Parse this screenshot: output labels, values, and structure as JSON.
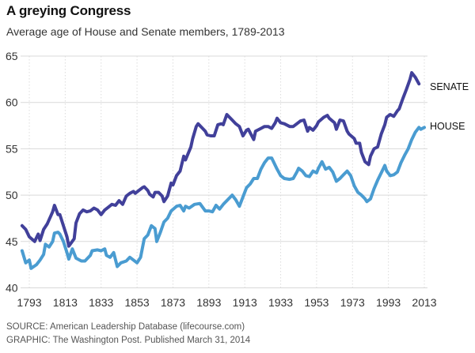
{
  "header": {
    "title": "A greying Congress",
    "subtitle": "Average age of House and Senate members, 1789-2013"
  },
  "footer": {
    "source": "SOURCE: American Leadership Database (lifecourse.com)",
    "graphic": "GRAPHIC: The Washington Post. Published March 31, 2014"
  },
  "colors": {
    "senate": "#41409a",
    "house": "#4a9cd1",
    "grid": "#d9d9d9"
  },
  "chart_data": {
    "type": "line",
    "title": "A greying Congress",
    "subtitle": "Average age of House and Senate members, 1789-2013",
    "xlabel": "",
    "ylabel": "",
    "xlim": [
      1789,
      2013
    ],
    "ylim": [
      40,
      65
    ],
    "xticks": [
      1793,
      1813,
      1833,
      1853,
      1873,
      1893,
      1913,
      1933,
      1953,
      1973,
      1993,
      2013
    ],
    "xtick_labels": [
      "1793",
      "1813",
      "1833",
      "1853",
      "1873",
      "1893",
      "1913",
      "1933",
      "1953",
      "1973",
      "1993",
      "2013"
    ],
    "yticks": [
      40,
      45,
      50,
      55,
      60,
      65
    ],
    "ytick_labels": [
      "40",
      "45",
      "50",
      "55",
      "60",
      "65"
    ],
    "grid": true,
    "legend": "direct-labels-right",
    "series": [
      {
        "name": "SENATE",
        "label": "SENATE",
        "points": [
          [
            1789,
            46.7
          ],
          [
            1791,
            46.3
          ],
          [
            1793,
            45.5
          ],
          [
            1796,
            45.0
          ],
          [
            1798,
            45.8
          ],
          [
            1799,
            45.1
          ],
          [
            1801,
            46.3
          ],
          [
            1803,
            46.9
          ],
          [
            1806,
            48.2
          ],
          [
            1807,
            48.9
          ],
          [
            1809,
            47.9
          ],
          [
            1810,
            47.9
          ],
          [
            1814,
            45.5
          ],
          [
            1815,
            44.5
          ],
          [
            1818,
            45.3
          ],
          [
            1819,
            47.0
          ],
          [
            1821,
            48.0
          ],
          [
            1823,
            48.4
          ],
          [
            1825,
            48.2
          ],
          [
            1827,
            48.3
          ],
          [
            1829,
            48.6
          ],
          [
            1831,
            48.4
          ],
          [
            1833,
            47.9
          ],
          [
            1835,
            48.4
          ],
          [
            1837,
            48.7
          ],
          [
            1839,
            49.0
          ],
          [
            1841,
            48.9
          ],
          [
            1843,
            49.4
          ],
          [
            1845,
            49.0
          ],
          [
            1847,
            49.9
          ],
          [
            1849,
            50.2
          ],
          [
            1851,
            50.4
          ],
          [
            1852,
            50.2
          ],
          [
            1854,
            50.5
          ],
          [
            1856,
            50.8
          ],
          [
            1857,
            50.9
          ],
          [
            1859,
            50.5
          ],
          [
            1860,
            50.1
          ],
          [
            1862,
            49.8
          ],
          [
            1863,
            50.3
          ],
          [
            1865,
            50.3
          ],
          [
            1867,
            49.9
          ],
          [
            1868,
            49.3
          ],
          [
            1870,
            49.9
          ],
          [
            1872,
            51.3
          ],
          [
            1873,
            51.1
          ],
          [
            1875,
            52.1
          ],
          [
            1877,
            52.6
          ],
          [
            1879,
            54.2
          ],
          [
            1880,
            53.8
          ],
          [
            1883,
            55.2
          ],
          [
            1884,
            56.1
          ],
          [
            1886,
            57.4
          ],
          [
            1887,
            57.7
          ],
          [
            1891,
            56.9
          ],
          [
            1892,
            56.5
          ],
          [
            1894,
            56.4
          ],
          [
            1896,
            56.4
          ],
          [
            1898,
            57.6
          ],
          [
            1900,
            57.7
          ],
          [
            1901,
            57.6
          ],
          [
            1903,
            58.7
          ],
          [
            1906,
            58.1
          ],
          [
            1908,
            57.7
          ],
          [
            1910,
            57.4
          ],
          [
            1912,
            56.4
          ],
          [
            1914,
            57.0
          ],
          [
            1915,
            57.1
          ],
          [
            1918,
            56.0
          ],
          [
            1919,
            56.9
          ],
          [
            1922,
            57.2
          ],
          [
            1924,
            57.4
          ],
          [
            1926,
            57.4
          ],
          [
            1928,
            57.2
          ],
          [
            1930,
            57.8
          ],
          [
            1931,
            58.3
          ],
          [
            1933,
            57.8
          ],
          [
            1935,
            57.7
          ],
          [
            1938,
            57.4
          ],
          [
            1940,
            57.4
          ],
          [
            1942,
            57.7
          ],
          [
            1944,
            58.0
          ],
          [
            1946,
            58.1
          ],
          [
            1948,
            56.9
          ],
          [
            1949,
            57.3
          ],
          [
            1951,
            57.0
          ],
          [
            1953,
            57.5
          ],
          [
            1954,
            57.9
          ],
          [
            1957,
            58.4
          ],
          [
            1959,
            58.6
          ],
          [
            1960,
            58.3
          ],
          [
            1963,
            57.8
          ],
          [
            1964,
            57.1
          ],
          [
            1966,
            58.1
          ],
          [
            1968,
            58.0
          ],
          [
            1970,
            56.9
          ],
          [
            1971,
            56.6
          ],
          [
            1974,
            56.1
          ],
          [
            1975,
            55.6
          ],
          [
            1977,
            55.6
          ],
          [
            1978,
            54.6
          ],
          [
            1980,
            53.6
          ],
          [
            1982,
            53.3
          ],
          [
            1983,
            54.2
          ],
          [
            1985,
            55.0
          ],
          [
            1987,
            55.2
          ],
          [
            1989,
            56.6
          ],
          [
            1991,
            57.6
          ],
          [
            1992,
            58.4
          ],
          [
            1994,
            58.7
          ],
          [
            1996,
            58.5
          ],
          [
            1998,
            59.1
          ],
          [
            1999,
            59.3
          ],
          [
            2001,
            60.4
          ],
          [
            2003,
            61.4
          ],
          [
            2005,
            62.5
          ],
          [
            2006,
            63.2
          ],
          [
            2008,
            62.7
          ],
          [
            2010,
            62.0
          ]
        ]
      },
      {
        "name": "HOUSE",
        "label": "HOUSE",
        "points": [
          [
            1789,
            44.0
          ],
          [
            1791,
            42.7
          ],
          [
            1793,
            43.0
          ],
          [
            1794,
            42.1
          ],
          [
            1797,
            42.5
          ],
          [
            1799,
            43.0
          ],
          [
            1801,
            43.6
          ],
          [
            1802,
            44.7
          ],
          [
            1804,
            44.4
          ],
          [
            1806,
            45.0
          ],
          [
            1807,
            45.9
          ],
          [
            1809,
            46.0
          ],
          [
            1810,
            45.8
          ],
          [
            1812,
            45.0
          ],
          [
            1814,
            43.8
          ],
          [
            1815,
            43.1
          ],
          [
            1817,
            44.2
          ],
          [
            1819,
            43.2
          ],
          [
            1822,
            42.9
          ],
          [
            1824,
            42.9
          ],
          [
            1827,
            43.5
          ],
          [
            1828,
            44.0
          ],
          [
            1831,
            44.1
          ],
          [
            1833,
            44.0
          ],
          [
            1835,
            44.2
          ],
          [
            1836,
            43.5
          ],
          [
            1838,
            43.3
          ],
          [
            1840,
            43.8
          ],
          [
            1842,
            42.3
          ],
          [
            1844,
            42.7
          ],
          [
            1847,
            42.9
          ],
          [
            1849,
            43.3
          ],
          [
            1851,
            43.0
          ],
          [
            1853,
            42.7
          ],
          [
            1855,
            43.3
          ],
          [
            1857,
            45.3
          ],
          [
            1859,
            45.7
          ],
          [
            1861,
            46.7
          ],
          [
            1863,
            46.4
          ],
          [
            1864,
            45.0
          ],
          [
            1866,
            46.0
          ],
          [
            1868,
            47.1
          ],
          [
            1870,
            47.5
          ],
          [
            1872,
            48.3
          ],
          [
            1875,
            48.8
          ],
          [
            1877,
            48.9
          ],
          [
            1879,
            48.3
          ],
          [
            1880,
            48.8
          ],
          [
            1882,
            48.6
          ],
          [
            1885,
            49.0
          ],
          [
            1888,
            49.1
          ],
          [
            1891,
            48.3
          ],
          [
            1893,
            48.3
          ],
          [
            1895,
            48.2
          ],
          [
            1897,
            48.9
          ],
          [
            1899,
            48.5
          ],
          [
            1901,
            49.0
          ],
          [
            1903,
            49.4
          ],
          [
            1906,
            50.0
          ],
          [
            1908,
            49.5
          ],
          [
            1910,
            48.8
          ],
          [
            1912,
            49.8
          ],
          [
            1914,
            50.8
          ],
          [
            1916,
            51.2
          ],
          [
            1918,
            51.8
          ],
          [
            1920,
            51.8
          ],
          [
            1922,
            52.8
          ],
          [
            1924,
            53.5
          ],
          [
            1926,
            54.0
          ],
          [
            1928,
            54.0
          ],
          [
            1931,
            52.8
          ],
          [
            1933,
            52.1
          ],
          [
            1935,
            51.8
          ],
          [
            1938,
            51.7
          ],
          [
            1940,
            51.8
          ],
          [
            1942,
            52.5
          ],
          [
            1943,
            52.9
          ],
          [
            1945,
            52.6
          ],
          [
            1947,
            52.1
          ],
          [
            1949,
            52.0
          ],
          [
            1951,
            52.6
          ],
          [
            1953,
            52.4
          ],
          [
            1954,
            52.9
          ],
          [
            1956,
            53.6
          ],
          [
            1958,
            52.8
          ],
          [
            1960,
            53.0
          ],
          [
            1962,
            52.5
          ],
          [
            1964,
            51.5
          ],
          [
            1966,
            51.8
          ],
          [
            1968,
            52.2
          ],
          [
            1970,
            52.6
          ],
          [
            1972,
            52.1
          ],
          [
            1974,
            51.0
          ],
          [
            1976,
            50.3
          ],
          [
            1978,
            50.0
          ],
          [
            1980,
            49.6
          ],
          [
            1981,
            49.3
          ],
          [
            1983,
            49.6
          ],
          [
            1985,
            50.7
          ],
          [
            1987,
            51.6
          ],
          [
            1989,
            52.4
          ],
          [
            1991,
            53.2
          ],
          [
            1992,
            52.6
          ],
          [
            1994,
            52.1
          ],
          [
            1996,
            52.2
          ],
          [
            1998,
            52.5
          ],
          [
            2000,
            53.5
          ],
          [
            2002,
            54.3
          ],
          [
            2004,
            55.0
          ],
          [
            2006,
            56.0
          ],
          [
            2008,
            56.8
          ],
          [
            2010,
            57.3
          ],
          [
            2011,
            57.1
          ],
          [
            2013,
            57.3
          ]
        ]
      }
    ]
  }
}
